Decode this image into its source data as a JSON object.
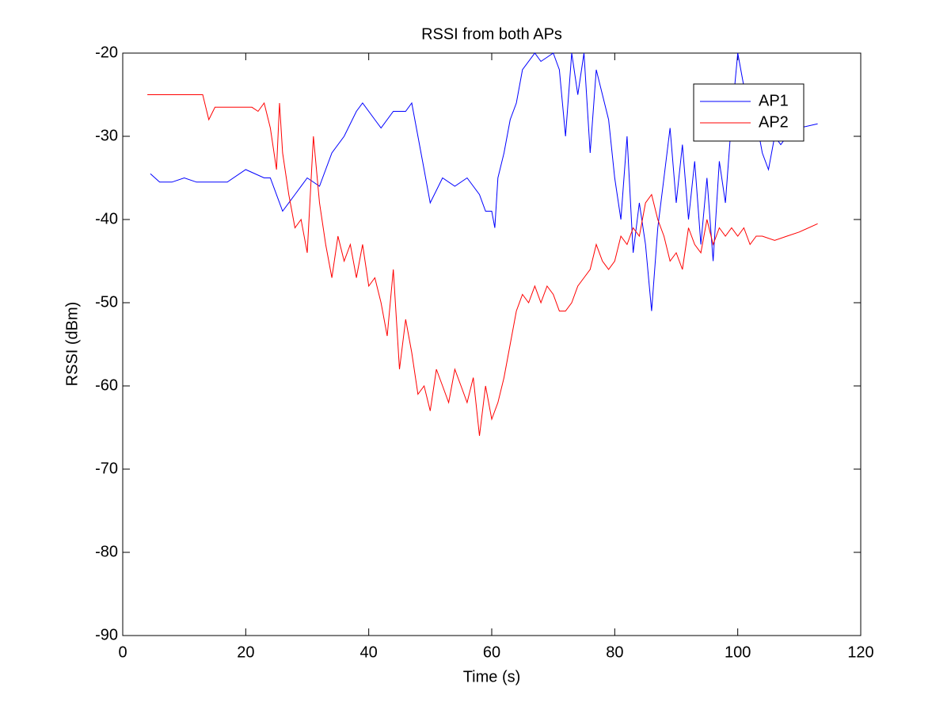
{
  "chart_data": {
    "type": "line",
    "title": "RSSI from both APs",
    "x_label": "Time (s)",
    "y_label": "RSSI (dBm)",
    "xlim": [
      0,
      120
    ],
    "xticks": [
      0,
      20,
      40,
      60,
      80,
      100,
      120
    ],
    "ylim": [
      -90,
      -20
    ],
    "yticks": [
      -90,
      -80,
      -70,
      -60,
      -50,
      -40,
      -30,
      -20
    ],
    "legend": "upper right",
    "series": [
      {
        "name": "AP1",
        "color": "#0000ff",
        "x": [
          4.5,
          6,
          8,
          10,
          12,
          15,
          17,
          20,
          23,
          24,
          26,
          28,
          30,
          32,
          34,
          36,
          38,
          39,
          41,
          42,
          44,
          46,
          47,
          48,
          49,
          50,
          52,
          54,
          56,
          58,
          59,
          60,
          60.5,
          61,
          62,
          63,
          64,
          65,
          67,
          68,
          70,
          71,
          72,
          73,
          74,
          75,
          76,
          77,
          78,
          79,
          80,
          81,
          82,
          83,
          84,
          85,
          86,
          87,
          88,
          89,
          90,
          91,
          92,
          93,
          94,
          95,
          96,
          97,
          98,
          99,
          100,
          101,
          102,
          103,
          104,
          105,
          106,
          107,
          108,
          110,
          113
        ],
        "values": [
          -34.5,
          -35.5,
          -35.5,
          -35,
          -35.5,
          -35.5,
          -35.5,
          -34,
          -35,
          -35,
          -39,
          -37,
          -35,
          -36,
          -32,
          -30,
          -27,
          -26,
          -28,
          -29,
          -27,
          -27,
          -26,
          -30,
          -34,
          -38,
          -35,
          -36,
          -35,
          -37,
          -39,
          -39,
          -41,
          -35,
          -32,
          -28,
          -26,
          -22,
          -20,
          -21,
          -20,
          -22,
          -30,
          -20,
          -25,
          -20,
          -32,
          -22,
          -25,
          -28,
          -35,
          -40,
          -30,
          -44,
          -38,
          -43,
          -51,
          -41,
          -35,
          -29,
          -38,
          -31,
          -40,
          -33,
          -43,
          -35,
          -45,
          -33,
          -38,
          -28,
          -20,
          -24,
          -30,
          -28,
          -32,
          -34,
          -30,
          -31,
          -30,
          -29,
          -28.5
        ]
      },
      {
        "name": "AP2",
        "color": "#ff0000",
        "x": [
          4,
          8,
          13,
          14,
          15,
          18,
          21,
          22,
          23,
          24,
          25,
          25.5,
          26,
          27,
          28,
          29,
          30,
          31,
          32,
          33,
          34,
          35,
          36,
          37,
          38,
          39,
          40,
          41,
          42,
          43,
          44,
          45,
          46,
          47,
          48,
          49,
          50,
          51,
          52,
          53,
          54,
          55,
          56,
          57,
          58,
          59,
          60,
          61,
          62,
          63,
          64,
          65,
          66,
          67,
          68,
          69,
          70,
          71,
          72,
          73,
          74,
          75,
          76,
          77,
          78,
          79,
          80,
          81,
          82,
          83,
          84,
          85,
          86,
          87,
          88,
          89,
          90,
          91,
          92,
          93,
          94,
          95,
          96,
          97,
          98,
          99,
          100,
          101,
          102,
          103,
          104,
          106,
          108,
          110,
          113
        ],
        "values": [
          -25,
          -25,
          -25,
          -28,
          -26.5,
          -26.5,
          -26.5,
          -27,
          -26,
          -29,
          -34,
          -26,
          -32,
          -37,
          -41,
          -40,
          -44,
          -30,
          -38,
          -43,
          -47,
          -42,
          -45,
          -43,
          -47,
          -43,
          -48,
          -47,
          -50,
          -54,
          -46,
          -58,
          -52,
          -56,
          -61,
          -60,
          -63,
          -58,
          -60,
          -62,
          -58,
          -60,
          -62,
          -59,
          -66,
          -60,
          -64,
          -62,
          -59,
          -55,
          -51,
          -49,
          -50,
          -48,
          -50,
          -48,
          -49,
          -51,
          -51,
          -50,
          -48,
          -47,
          -46,
          -43,
          -45,
          -46,
          -45,
          -42,
          -43,
          -41,
          -42,
          -38,
          -37,
          -40,
          -42,
          -45,
          -44,
          -46,
          -41,
          -43,
          -44,
          -40,
          -43,
          -41,
          -42,
          -41,
          -42,
          -41,
          -43,
          -42,
          -42,
          -42.5,
          -42,
          -41.5,
          -40.5
        ]
      }
    ]
  }
}
